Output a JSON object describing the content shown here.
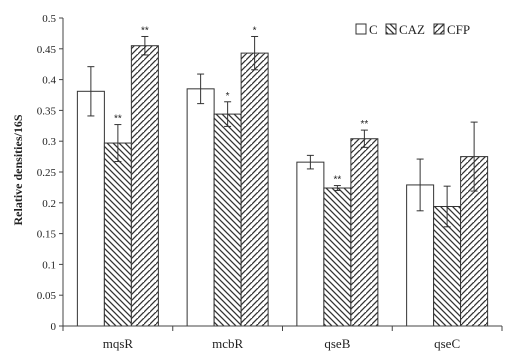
{
  "chart_data": {
    "type": "bar",
    "categories": [
      "mqsR",
      "mcbR",
      "qseB",
      "qseC"
    ],
    "series": [
      {
        "name": "C",
        "pattern": "blank",
        "values": [
          0.381,
          0.385,
          0.266,
          0.229
        ],
        "errors": [
          0.04,
          0.024,
          0.011,
          0.042
        ],
        "sig": [
          "",
          "",
          "",
          ""
        ]
      },
      {
        "name": "CAZ",
        "pattern": "back-slash",
        "values": [
          0.297,
          0.344,
          0.224,
          0.194
        ],
        "errors": [
          0.03,
          0.02,
          0.004,
          0.033
        ],
        "sig": [
          "**",
          "*",
          "**",
          ""
        ]
      },
      {
        "name": "CFP",
        "pattern": "forward-slash",
        "values": [
          0.455,
          0.443,
          0.304,
          0.275
        ],
        "errors": [
          0.015,
          0.027,
          0.014,
          0.056
        ],
        "sig": [
          "**",
          "*",
          "**",
          ""
        ]
      }
    ],
    "ylabel": "Relative densities/16S",
    "xlabel": "",
    "ylim": [
      0,
      0.5
    ],
    "yticks": [
      "0",
      "0.05",
      "0.1",
      "0.15",
      "0.2",
      "0.25",
      "0.3",
      "0.35",
      "0.4",
      "0.45",
      "0.5"
    ],
    "grid": false,
    "legend_position": "top-right",
    "colors": {
      "stroke": "#333333",
      "fill": "#ffffff",
      "hatch": "#333333"
    }
  }
}
